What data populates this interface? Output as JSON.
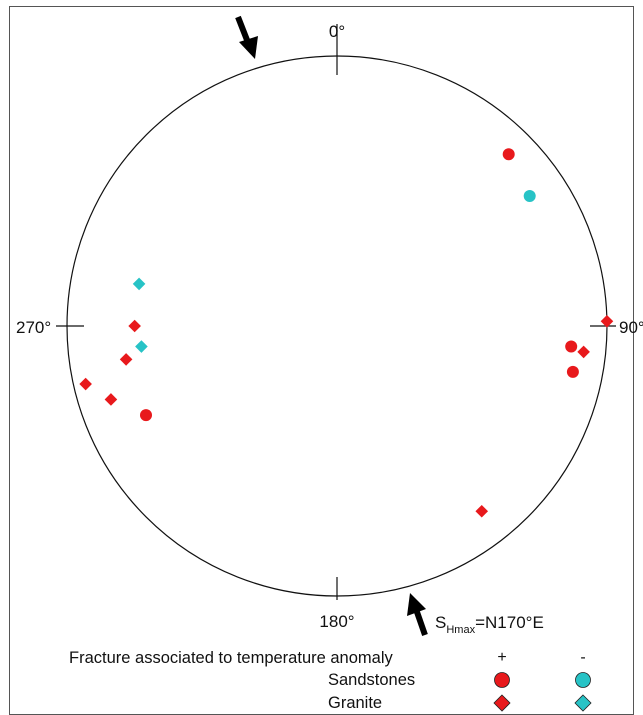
{
  "diagram": {
    "north_label": "0°",
    "east_label": "90°",
    "south_label": "180°",
    "west_label": "270°",
    "stress": {
      "prefix": "S",
      "subscript": "Hmax",
      "suffix": "=N170°E"
    },
    "colors": {
      "positive": "#e8191c",
      "negative": "#27c3c6",
      "circle": "#111111"
    },
    "points": [
      {
        "lithology": "Granite",
        "anomaly": "+",
        "dip_direction_deg": 322,
        "dip_deg": 76
      },
      {
        "lithology": "Sandstones",
        "anomaly": "+",
        "dip_direction_deg": 65,
        "dip_deg": 67
      },
      {
        "lithology": "Granite",
        "anomaly": "+",
        "dip_direction_deg": 72,
        "dip_deg": 77
      },
      {
        "lithology": "Granite",
        "anomaly": "+",
        "dip_direction_deg": 77,
        "dip_deg": 85
      },
      {
        "lithology": "Granite",
        "anomaly": "+",
        "dip_direction_deg": 81,
        "dip_deg": 68
      },
      {
        "lithology": "Granite",
        "anomaly": "+",
        "dip_direction_deg": 90,
        "dip_deg": 64
      },
      {
        "lithology": "Granite",
        "anomaly": "-",
        "dip_direction_deg": 84,
        "dip_deg": 62
      },
      {
        "lithology": "Granite",
        "anomaly": "-",
        "dip_direction_deg": 102,
        "dip_deg": 64
      },
      {
        "lithology": "Sandstones",
        "anomaly": "+",
        "dip_direction_deg": 281,
        "dip_deg": 78
      },
      {
        "lithology": "Granite",
        "anomaly": "+",
        "dip_direction_deg": 276,
        "dip_deg": 81
      },
      {
        "lithology": "Sandstones",
        "anomaly": "+",
        "dip_direction_deg": 275,
        "dip_deg": 76
      },
      {
        "lithology": "Granite",
        "anomaly": "+",
        "dip_direction_deg": 269,
        "dip_deg": 90
      },
      {
        "lithology": "Sandstones",
        "anomaly": "-",
        "dip_direction_deg": 236,
        "dip_deg": 75
      },
      {
        "lithology": "Sandstones",
        "anomaly": "+",
        "dip_direction_deg": 225,
        "dip_deg": 79
      }
    ]
  },
  "legend": {
    "title": "Fracture associated to temperature anomaly",
    "plus_header": "+",
    "minus_header": "-",
    "rows": [
      {
        "label": "Sandstones",
        "symbol": "circle"
      },
      {
        "label": "Granite",
        "symbol": "diamond"
      }
    ]
  }
}
